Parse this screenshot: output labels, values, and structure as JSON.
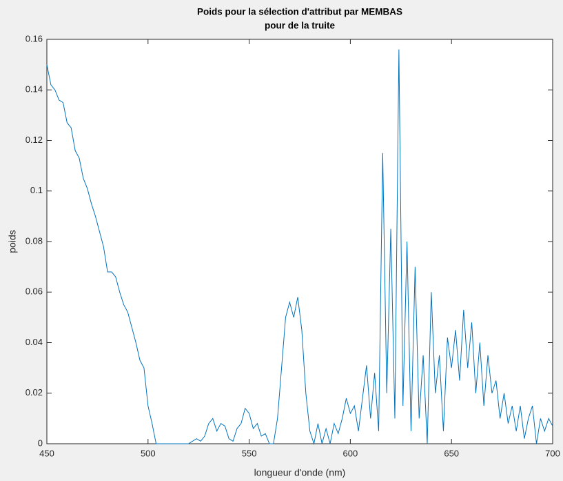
{
  "chart_data": {
    "type": "line",
    "title": [
      "Poids pour la sélection d'attribut par MEMBAS",
      "pour de la truite"
    ],
    "x_label": "longueur d'onde (nm)",
    "y_label": "poids",
    "x": [
      450,
      452,
      454,
      456,
      458,
      460,
      462,
      464,
      466,
      468,
      470,
      472,
      474,
      476,
      478,
      480,
      482,
      484,
      486,
      488,
      490,
      492,
      494,
      496,
      498,
      500,
      502,
      504,
      506,
      508,
      510,
      512,
      514,
      516,
      518,
      520,
      522,
      524,
      526,
      528,
      530,
      532,
      534,
      536,
      538,
      540,
      542,
      544,
      546,
      548,
      550,
      552,
      554,
      556,
      558,
      560,
      562,
      564,
      566,
      568,
      570,
      572,
      574,
      576,
      578,
      580,
      582,
      584,
      586,
      588,
      590,
      592,
      594,
      596,
      598,
      600,
      602,
      604,
      606,
      608,
      610,
      612,
      614,
      616,
      618,
      620,
      622,
      624,
      626,
      628,
      630,
      632,
      634,
      636,
      638,
      640,
      642,
      644,
      646,
      648,
      650,
      652,
      654,
      656,
      658,
      660,
      662,
      664,
      666,
      668,
      670,
      672,
      674,
      676,
      678,
      680,
      682,
      684,
      686,
      688,
      690,
      692,
      694,
      696,
      698,
      700
    ],
    "series": [
      {
        "color": "#0072bd",
        "values": [
          0.15,
          0.142,
          0.14,
          0.136,
          0.135,
          0.127,
          0.125,
          0.116,
          0.113,
          0.105,
          0.101,
          0.095,
          0.09,
          0.084,
          0.078,
          0.068,
          0.068,
          0.066,
          0.06,
          0.055,
          0.052,
          0.046,
          0.04,
          0.033,
          0.03,
          0.015,
          0.008,
          0,
          0,
          0,
          0,
          0,
          0,
          0,
          0,
          0,
          0.001,
          0.002,
          0.001,
          0.003,
          0.008,
          0.01,
          0.005,
          0.008,
          0.007,
          0.002,
          0.001,
          0.006,
          0.008,
          0.014,
          0.012,
          0.006,
          0.008,
          0.003,
          0.004,
          0,
          0,
          0.01,
          0.03,
          0.05,
          0.056,
          0.05,
          0.058,
          0.045,
          0.02,
          0.005,
          0,
          0.008,
          0,
          0.006,
          0,
          0.008,
          0.004,
          0.01,
          0.018,
          0.012,
          0.015,
          0.005,
          0.018,
          0.031,
          0.01,
          0.028,
          0.005,
          0.115,
          0.02,
          0.085,
          0.01,
          0.156,
          0.015,
          0.08,
          0.005,
          0.07,
          0.01,
          0.035,
          0,
          0.06,
          0.02,
          0.035,
          0.005,
          0.042,
          0.03,
          0.045,
          0.025,
          0.053,
          0.03,
          0.048,
          0.02,
          0.04,
          0.015,
          0.035,
          0.02,
          0.025,
          0.01,
          0.02,
          0.008,
          0.015,
          0.005,
          0.015,
          0.002,
          0.01,
          0.015,
          0,
          0.01,
          0.005,
          0.01,
          0.007
        ]
      }
    ],
    "xlim": [
      450,
      700
    ],
    "xticks": [
      450,
      500,
      550,
      600,
      650,
      700
    ],
    "ylim": [
      0,
      0.16
    ],
    "yticks": [
      0,
      0.02,
      0.04,
      0.06,
      0.08,
      0.1,
      0.12,
      0.14,
      0.16
    ],
    "grid": false
  }
}
